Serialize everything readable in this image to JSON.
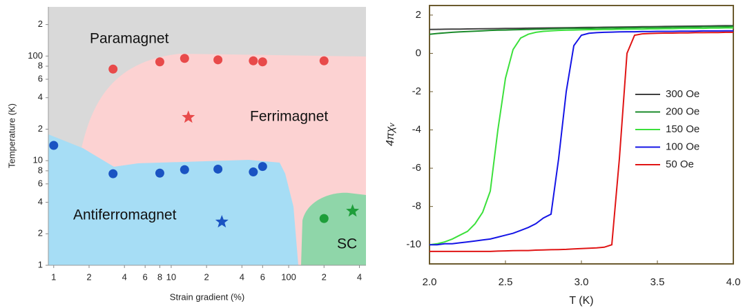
{
  "chart_data": [
    {
      "type": "scatter",
      "xscale": "log",
      "yscale": "log",
      "x_label": "Strain gradient (%)",
      "y_label": "Temperature (K)",
      "xlim": [
        0.9,
        455
      ],
      "ylim": [
        1,
        295
      ],
      "xticks": [
        1,
        2,
        4,
        6,
        8,
        10,
        {
          "value": 20,
          "label": "2"
        },
        {
          "value": 40,
          "label": "4"
        },
        {
          "value": 60,
          "label": "6"
        },
        100,
        {
          "value": 200,
          "label": "2"
        },
        {
          "value": 400,
          "label": "4"
        }
      ],
      "yticks": [
        1,
        2,
        4,
        6,
        8,
        10,
        {
          "value": 20,
          "label": "2"
        },
        {
          "value": 40,
          "label": "4"
        },
        {
          "value": 60,
          "label": "6"
        },
        {
          "value": 80,
          "label": "8"
        },
        100,
        {
          "value": 200,
          "label": "2"
        }
      ],
      "annotations": [
        "Paramagnet",
        "Ferrimagnet",
        "Antiferromagnet",
        "SC"
      ],
      "series": [
        {
          "color": "#e84a4a",
          "marker": "circle",
          "x": [
            3.2,
            8,
            13,
            25,
            50,
            60,
            200
          ],
          "values": [
            75,
            88,
            95,
            92,
            90,
            88,
            90
          ]
        },
        {
          "color": "#e84a4a",
          "marker": "star",
          "x": [
            14
          ],
          "values": [
            26
          ]
        },
        {
          "color": "#1a53c2",
          "marker": "circle",
          "x": [
            1,
            3.2,
            8,
            13,
            25,
            50,
            60
          ],
          "values": [
            14,
            7.5,
            7.6,
            8.2,
            8.3,
            7.8,
            8.8
          ]
        },
        {
          "color": "#1a53c2",
          "marker": "star",
          "x": [
            27
          ],
          "values": [
            2.6
          ]
        },
        {
          "color": "#1e9e3a",
          "marker": "circle",
          "x": [
            200
          ],
          "values": [
            2.8
          ]
        },
        {
          "color": "#1e9e3a",
          "marker": "star",
          "x": [
            350
          ],
          "values": [
            3.3
          ]
        }
      ]
    },
    {
      "type": "line",
      "x_label": "T (K)",
      "y_label": "4πχᵥ",
      "xlim": [
        2.0,
        4.0
      ],
      "ylim": [
        -11,
        2.5
      ],
      "xticks": [
        {
          "value": 2,
          "label": "2.0"
        },
        {
          "value": 2.5,
          "label": "2.5"
        },
        {
          "value": 3,
          "label": "3.0"
        },
        {
          "value": 3.5,
          "label": "3.5"
        },
        {
          "value": 4,
          "label": "4.0"
        }
      ],
      "yticks": [
        2,
        0,
        -2,
        -4,
        -6,
        -8,
        -10
      ],
      "x": [
        2.0,
        2.05,
        2.1,
        2.15,
        2.2,
        2.25,
        2.3,
        2.35,
        2.4,
        2.45,
        2.5,
        2.55,
        2.6,
        2.65,
        2.7,
        2.75,
        2.8,
        2.85,
        2.9,
        2.95,
        3.0,
        3.05,
        3.1,
        3.15,
        3.2,
        3.25,
        3.3,
        3.35,
        3.4,
        3.45,
        3.5,
        3.55,
        3.6,
        3.65,
        3.7,
        3.75,
        3.8,
        3.85,
        3.9,
        3.95,
        4.0
      ],
      "series": [
        {
          "name": "300 Oe",
          "color": "#404040",
          "values": [
            1.25,
            1.255,
            1.26,
            1.265,
            1.27,
            1.275,
            1.28,
            1.285,
            1.29,
            1.295,
            1.3,
            1.305,
            1.31,
            1.315,
            1.32,
            1.325,
            1.33,
            1.335,
            1.34,
            1.345,
            1.35,
            1.355,
            1.36,
            1.365,
            1.37,
            1.375,
            1.38,
            1.385,
            1.39,
            1.395,
            1.4,
            1.405,
            1.41,
            1.415,
            1.42,
            1.425,
            1.43,
            1.435,
            1.44,
            1.445,
            1.45
          ]
        },
        {
          "name": "200 Oe",
          "color": "#1a8a2a",
          "values": [
            1.0,
            1.04,
            1.07,
            1.1,
            1.12,
            1.14,
            1.16,
            1.18,
            1.2,
            1.21,
            1.22,
            1.23,
            1.24,
            1.25,
            1.26,
            1.27,
            1.28,
            1.29,
            1.3,
            1.3,
            1.31,
            1.31,
            1.32,
            1.32,
            1.33,
            1.33,
            1.34,
            1.34,
            1.35,
            1.35,
            1.36,
            1.36,
            1.37,
            1.37,
            1.38,
            1.38,
            1.39,
            1.39,
            1.4,
            1.4,
            1.41
          ]
        },
        {
          "name": "150 Oe",
          "color": "#3be03b",
          "values": [
            -10,
            -9.95,
            -9.85,
            -9.7,
            -9.5,
            -9.3,
            -8.9,
            -8.3,
            -7.2,
            -4.0,
            -1.3,
            0.2,
            0.8,
            1.0,
            1.1,
            1.15,
            1.18,
            1.2,
            1.21,
            1.22,
            1.23,
            1.24,
            1.24,
            1.25,
            1.25,
            1.26,
            1.26,
            1.27,
            1.27,
            1.28,
            1.28,
            1.29,
            1.29,
            1.3,
            1.3,
            1.31,
            1.31,
            1.32,
            1.32,
            1.33,
            1.33
          ]
        },
        {
          "name": "100 Oe",
          "color": "#1414e6",
          "values": [
            -10,
            -10,
            -9.95,
            -9.95,
            -9.9,
            -9.85,
            -9.8,
            -9.75,
            -9.7,
            -9.6,
            -9.5,
            -9.4,
            -9.25,
            -9.1,
            -8.9,
            -8.6,
            -8.4,
            -5.5,
            -2.0,
            0.4,
            0.95,
            1.05,
            1.08,
            1.1,
            1.11,
            1.12,
            1.13,
            1.13,
            1.14,
            1.14,
            1.15,
            1.15,
            1.15,
            1.16,
            1.16,
            1.16,
            1.17,
            1.17,
            1.17,
            1.18,
            1.18
          ]
        },
        {
          "name": "50 Oe",
          "color": "#e01414",
          "values": [
            -10.35,
            -10.35,
            -10.35,
            -10.35,
            -10.35,
            -10.35,
            -10.35,
            -10.35,
            -10.35,
            -10.33,
            -10.32,
            -10.31,
            -10.3,
            -10.3,
            -10.28,
            -10.27,
            -10.26,
            -10.25,
            -10.24,
            -10.22,
            -10.2,
            -10.18,
            -10.16,
            -10.13,
            -10.0,
            -5.5,
            0.0,
            0.95,
            1.02,
            1.04,
            1.05,
            1.06,
            1.06,
            1.07,
            1.07,
            1.08,
            1.08,
            1.09,
            1.09,
            1.1,
            1.1
          ]
        }
      ]
    }
  ]
}
